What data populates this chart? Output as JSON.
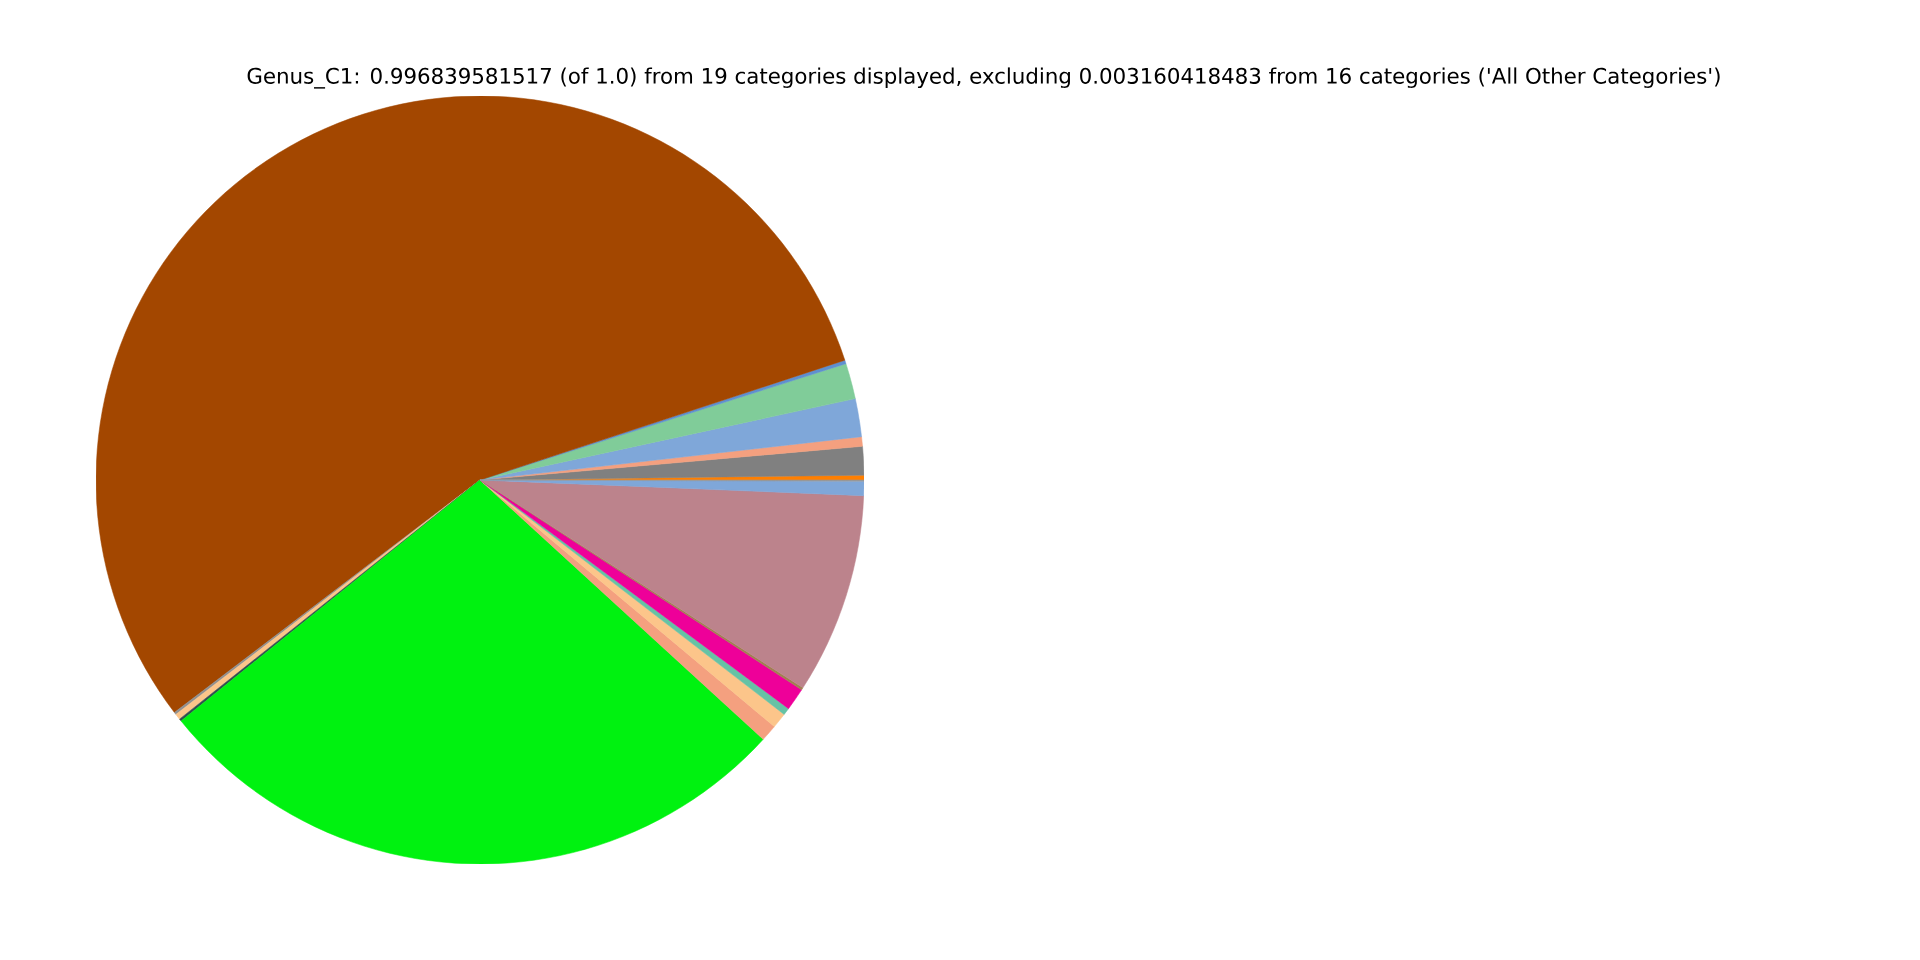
{
  "chart_data": {
    "type": "pie",
    "title": "Genus_C1: 0.996839581517 (of 1.0) from 19 categories displayed, excluding 0.003160418483 from 16 categories ('All Other Categories')",
    "categories": [
      null,
      null,
      null,
      null,
      null,
      null,
      null,
      null,
      null,
      null,
      null,
      null,
      null,
      null,
      null,
      null,
      null,
      null,
      null
    ],
    "values": [
      0.2,
      1.2,
      0.4,
      1.6,
      1.5,
      0.15,
      55.3,
      0.1,
      0.25,
      0.1,
      27.4,
      0.7,
      0.65,
      0.3,
      0.95,
      0.1,
      8.45,
      0.6,
      0.05
    ],
    "colors": [
      "#ff7f00",
      "#808080",
      "#f4a07f",
      "#7fa7d9",
      "#80cc99",
      "#5f8fcf",
      "#a34700",
      "#909090",
      "#fcc58a",
      "#2f4f4f",
      "#00f210",
      "#f4a07f",
      "#fcc58a",
      "#66c2a5",
      "#ee0099",
      "#a08050",
      "#bc838c",
      "#7fa7d9",
      "#999999"
    ]
  }
}
